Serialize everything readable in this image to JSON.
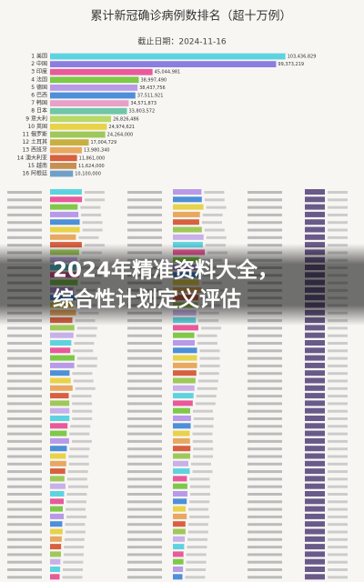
{
  "chart_data": {
    "type": "bar",
    "orientation": "horizontal",
    "title": "累计新冠确诊病例数排名（超十万例）",
    "subtitle": "截止日期：2024-11-16",
    "categories": [
      "1 美国",
      "2 中国",
      "3 印度",
      "4 法国",
      "5 德国",
      "6 巴西",
      "7 韩国",
      "8 日本",
      "9 意大利",
      "10 英国",
      "11 俄罗斯",
      "12 土耳其",
      "13 西班牙",
      "14 澳大利亚",
      "15 越南",
      "16 阿根廷"
    ],
    "values": [
      103436829,
      99373219,
      45044981,
      38997490,
      38437756,
      37511921,
      34571873,
      33803572,
      26826486,
      24974621,
      24264000,
      17004729,
      13980340,
      11861000,
      11624000,
      10100000
    ],
    "value_labels": [
      "103,436,829",
      "99,373,219",
      "45,044,981",
      "38,997,490",
      "38,437,756",
      "37,511,921",
      "34,571,873",
      "33,803,572",
      "26,826,486",
      "24,974,621",
      "24,264,000",
      "17,004,729",
      "13,980,340",
      "11,861,000",
      "11,624,000",
      "10,100,000"
    ],
    "colors": [
      "#5ed3e0",
      "#8a7fe0",
      "#e85a9a",
      "#7ec84a",
      "#b89ae8",
      "#4d8fd8",
      "#e8a0c8",
      "#6fc6a8",
      "#b8d86a",
      "#e8d24a",
      "#9fc85a",
      "#c8b040",
      "#e8a860",
      "#d86040",
      "#c89050",
      "#70a0c8"
    ],
    "xlim": [
      0,
      110000000
    ],
    "headline": [
      "2024年精准资料大全，",
      "综合性计划定义评估"
    ]
  }
}
